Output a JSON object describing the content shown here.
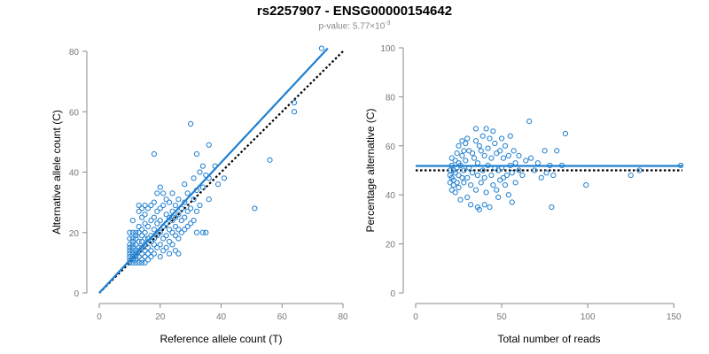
{
  "title": "rs2257907 - ENSG00000154642",
  "subtitle": {
    "prefix": "p-value: 5.77×10",
    "exponent": "-3"
  },
  "colors": {
    "points": "#1f7fd0",
    "fit": "#1f7fd0",
    "reference": "#000000",
    "axis": "#888888"
  },
  "chart_data": [
    {
      "type": "scatter",
      "xlabel": "Reference allele count (T)",
      "ylabel": "Alternative allele count (C)",
      "xlim": [
        0,
        80
      ],
      "ylim": [
        0,
        80
      ],
      "xticks": [
        0,
        20,
        40,
        60,
        80
      ],
      "yticks": [
        0,
        20,
        40,
        60,
        80
      ],
      "grid": false,
      "fit_line": {
        "x": [
          0,
          75
        ],
        "y": [
          0,
          81
        ]
      },
      "reference_line": {
        "x": [
          0,
          80
        ],
        "y": [
          0,
          80
        ],
        "style": "dotted"
      },
      "points": [
        [
          10,
          10
        ],
        [
          10,
          11
        ],
        [
          10,
          12
        ],
        [
          10,
          13
        ],
        [
          10,
          14
        ],
        [
          10,
          15
        ],
        [
          10,
          16
        ],
        [
          10,
          18
        ],
        [
          10,
          20
        ],
        [
          11,
          10
        ],
        [
          11,
          11
        ],
        [
          11,
          12
        ],
        [
          11,
          13
        ],
        [
          11,
          14
        ],
        [
          11,
          15
        ],
        [
          11,
          16
        ],
        [
          11,
          17
        ],
        [
          11,
          18
        ],
        [
          11,
          20
        ],
        [
          11,
          24
        ],
        [
          12,
          10
        ],
        [
          12,
          11
        ],
        [
          12,
          12
        ],
        [
          12,
          13
        ],
        [
          12,
          14
        ],
        [
          12,
          16
        ],
        [
          12,
          18
        ],
        [
          12,
          19
        ],
        [
          12,
          20
        ],
        [
          13,
          10
        ],
        [
          13,
          12
        ],
        [
          13,
          14
        ],
        [
          13,
          15
        ],
        [
          13,
          17
        ],
        [
          13,
          20
        ],
        [
          13,
          22
        ],
        [
          13,
          27
        ],
        [
          13,
          29
        ],
        [
          14,
          10
        ],
        [
          14,
          11
        ],
        [
          14,
          13
        ],
        [
          14,
          15
        ],
        [
          14,
          17
        ],
        [
          14,
          19
        ],
        [
          14,
          21
        ],
        [
          14,
          25
        ],
        [
          14,
          28
        ],
        [
          15,
          10
        ],
        [
          15,
          12
        ],
        [
          15,
          14
        ],
        [
          15,
          16
        ],
        [
          15,
          18
        ],
        [
          15,
          20
        ],
        [
          15,
          23
        ],
        [
          15,
          26
        ],
        [
          15,
          29
        ],
        [
          16,
          11
        ],
        [
          16,
          13
        ],
        [
          16,
          15
        ],
        [
          16,
          18
        ],
        [
          16,
          22
        ],
        [
          16,
          28
        ],
        [
          17,
          12
        ],
        [
          17,
          14
        ],
        [
          17,
          17
        ],
        [
          17,
          19
        ],
        [
          17,
          24
        ],
        [
          17,
          29
        ],
        [
          18,
          13
        ],
        [
          18,
          16
        ],
        [
          18,
          18
        ],
        [
          18,
          21
        ],
        [
          18,
          25
        ],
        [
          18,
          30
        ],
        [
          18,
          46
        ],
        [
          19,
          15
        ],
        [
          19,
          19
        ],
        [
          19,
          23
        ],
        [
          19,
          27
        ],
        [
          19,
          33
        ],
        [
          20,
          12
        ],
        [
          20,
          16
        ],
        [
          20,
          20
        ],
        [
          20,
          24
        ],
        [
          20,
          28
        ],
        [
          20,
          35
        ],
        [
          21,
          14
        ],
        [
          21,
          18
        ],
        [
          21,
          22
        ],
        [
          21,
          29
        ],
        [
          21,
          33
        ],
        [
          22,
          15
        ],
        [
          22,
          19
        ],
        [
          22,
          23
        ],
        [
          22,
          26
        ],
        [
          22,
          31
        ],
        [
          23,
          13
        ],
        [
          23,
          17
        ],
        [
          23,
          21
        ],
        [
          23,
          25
        ],
        [
          23,
          30
        ],
        [
          24,
          16
        ],
        [
          24,
          20
        ],
        [
          24,
          24
        ],
        [
          24,
          27
        ],
        [
          24,
          33
        ],
        [
          25,
          14
        ],
        [
          25,
          19
        ],
        [
          25,
          22
        ],
        [
          25,
          25
        ],
        [
          25,
          29
        ],
        [
          26,
          13
        ],
        [
          26,
          18
        ],
        [
          26,
          21
        ],
        [
          26,
          26
        ],
        [
          26,
          31
        ],
        [
          27,
          20
        ],
        [
          27,
          24
        ],
        [
          27,
          28
        ],
        [
          28,
          21
        ],
        [
          28,
          25
        ],
        [
          28,
          30
        ],
        [
          28,
          36
        ],
        [
          29,
          22
        ],
        [
          29,
          27
        ],
        [
          29,
          33
        ],
        [
          30,
          23
        ],
        [
          30,
          28
        ],
        [
          30,
          56
        ],
        [
          31,
          24
        ],
        [
          31,
          31
        ],
        [
          31,
          38
        ],
        [
          32,
          20
        ],
        [
          32,
          27
        ],
        [
          32,
          34
        ],
        [
          32,
          46
        ],
        [
          33,
          29
        ],
        [
          33,
          40
        ],
        [
          34,
          20
        ],
        [
          34,
          35
        ],
        [
          34,
          42
        ],
        [
          35,
          20
        ],
        [
          35,
          39
        ],
        [
          36,
          31
        ],
        [
          36,
          38
        ],
        [
          36,
          49
        ],
        [
          38,
          42
        ],
        [
          39,
          36
        ],
        [
          41,
          38
        ],
        [
          51,
          28
        ],
        [
          56,
          44
        ],
        [
          64,
          60
        ],
        [
          64,
          63
        ],
        [
          73,
          81
        ]
      ]
    },
    {
      "type": "scatter",
      "xlabel": "Total number of reads",
      "ylabel": "Percentage alternative (C)",
      "xlim": [
        0,
        155
      ],
      "ylim": [
        0,
        100
      ],
      "xticks": [
        0,
        50,
        100,
        150
      ],
      "yticks": [
        0,
        20,
        40,
        60,
        80,
        100
      ],
      "grid": false,
      "fit_line": {
        "x": [
          0,
          155
        ],
        "y": [
          51.8,
          51.8
        ]
      },
      "reference_line": {
        "x": [
          0,
          155
        ],
        "y": [
          50,
          50
        ],
        "style": "dotted"
      },
      "points": [
        [
          20,
          45
        ],
        [
          20,
          48
        ],
        [
          20,
          50
        ],
        [
          21,
          42
        ],
        [
          21,
          52
        ],
        [
          21,
          55
        ],
        [
          21,
          47
        ],
        [
          22,
          50
        ],
        [
          22,
          46
        ],
        [
          22,
          44
        ],
        [
          23,
          54
        ],
        [
          23,
          49
        ],
        [
          23,
          41
        ],
        [
          24,
          57
        ],
        [
          24,
          51
        ],
        [
          24,
          45
        ],
        [
          25,
          60
        ],
        [
          25,
          53
        ],
        [
          25,
          48
        ],
        [
          25,
          43
        ],
        [
          26,
          52
        ],
        [
          26,
          38
        ],
        [
          27,
          56
        ],
        [
          27,
          47
        ],
        [
          27,
          62
        ],
        [
          28,
          58
        ],
        [
          28,
          50
        ],
        [
          28,
          45
        ],
        [
          29,
          61
        ],
        [
          29,
          54
        ],
        [
          30,
          39
        ],
        [
          30,
          47
        ],
        [
          30,
          63
        ],
        [
          31,
          58
        ],
        [
          31,
          51
        ],
        [
          32,
          44
        ],
        [
          32,
          36
        ],
        [
          33,
          57
        ],
        [
          33,
          49
        ],
        [
          34,
          55
        ],
        [
          35,
          62
        ],
        [
          35,
          42
        ],
        [
          35,
          67
        ],
        [
          36,
          35
        ],
        [
          36,
          48
        ],
        [
          36,
          53
        ],
        [
          37,
          60
        ],
        [
          37,
          34
        ],
        [
          38,
          45
        ],
        [
          38,
          58
        ],
        [
          39,
          50
        ],
        [
          39,
          64
        ],
        [
          40,
          36
        ],
        [
          40,
          56
        ],
        [
          40,
          47
        ],
        [
          41,
          67
        ],
        [
          41,
          41
        ],
        [
          42,
          52
        ],
        [
          42,
          59
        ],
        [
          43,
          35
        ],
        [
          43,
          63
        ],
        [
          44,
          48
        ],
        [
          44,
          55
        ],
        [
          45,
          66
        ],
        [
          45,
          44
        ],
        [
          46,
          51
        ],
        [
          46,
          61
        ],
        [
          47,
          42
        ],
        [
          47,
          57
        ],
        [
          48,
          50
        ],
        [
          48,
          39
        ],
        [
          49,
          46
        ],
        [
          49,
          58
        ],
        [
          50,
          51
        ],
        [
          50,
          63
        ],
        [
          51,
          47
        ],
        [
          51,
          55
        ],
        [
          52,
          44
        ],
        [
          52,
          60
        ],
        [
          53,
          48
        ],
        [
          54,
          40
        ],
        [
          54,
          56
        ],
        [
          55,
          52
        ],
        [
          55,
          64
        ],
        [
          56,
          37
        ],
        [
          56,
          49
        ],
        [
          57,
          58
        ],
        [
          58,
          45
        ],
        [
          58,
          53
        ],
        [
          60,
          50
        ],
        [
          60,
          56
        ],
        [
          62,
          48
        ],
        [
          64,
          54
        ],
        [
          66,
          70
        ],
        [
          67,
          55
        ],
        [
          69,
          50
        ],
        [
          71,
          53
        ],
        [
          73,
          47
        ],
        [
          75,
          58
        ],
        [
          76,
          49
        ],
        [
          78,
          52
        ],
        [
          79,
          35
        ],
        [
          80,
          48
        ],
        [
          82,
          58
        ],
        [
          85,
          52
        ],
        [
          87,
          65
        ],
        [
          99,
          44
        ],
        [
          125,
          48
        ],
        [
          130,
          50
        ],
        [
          154,
          52
        ]
      ]
    }
  ]
}
